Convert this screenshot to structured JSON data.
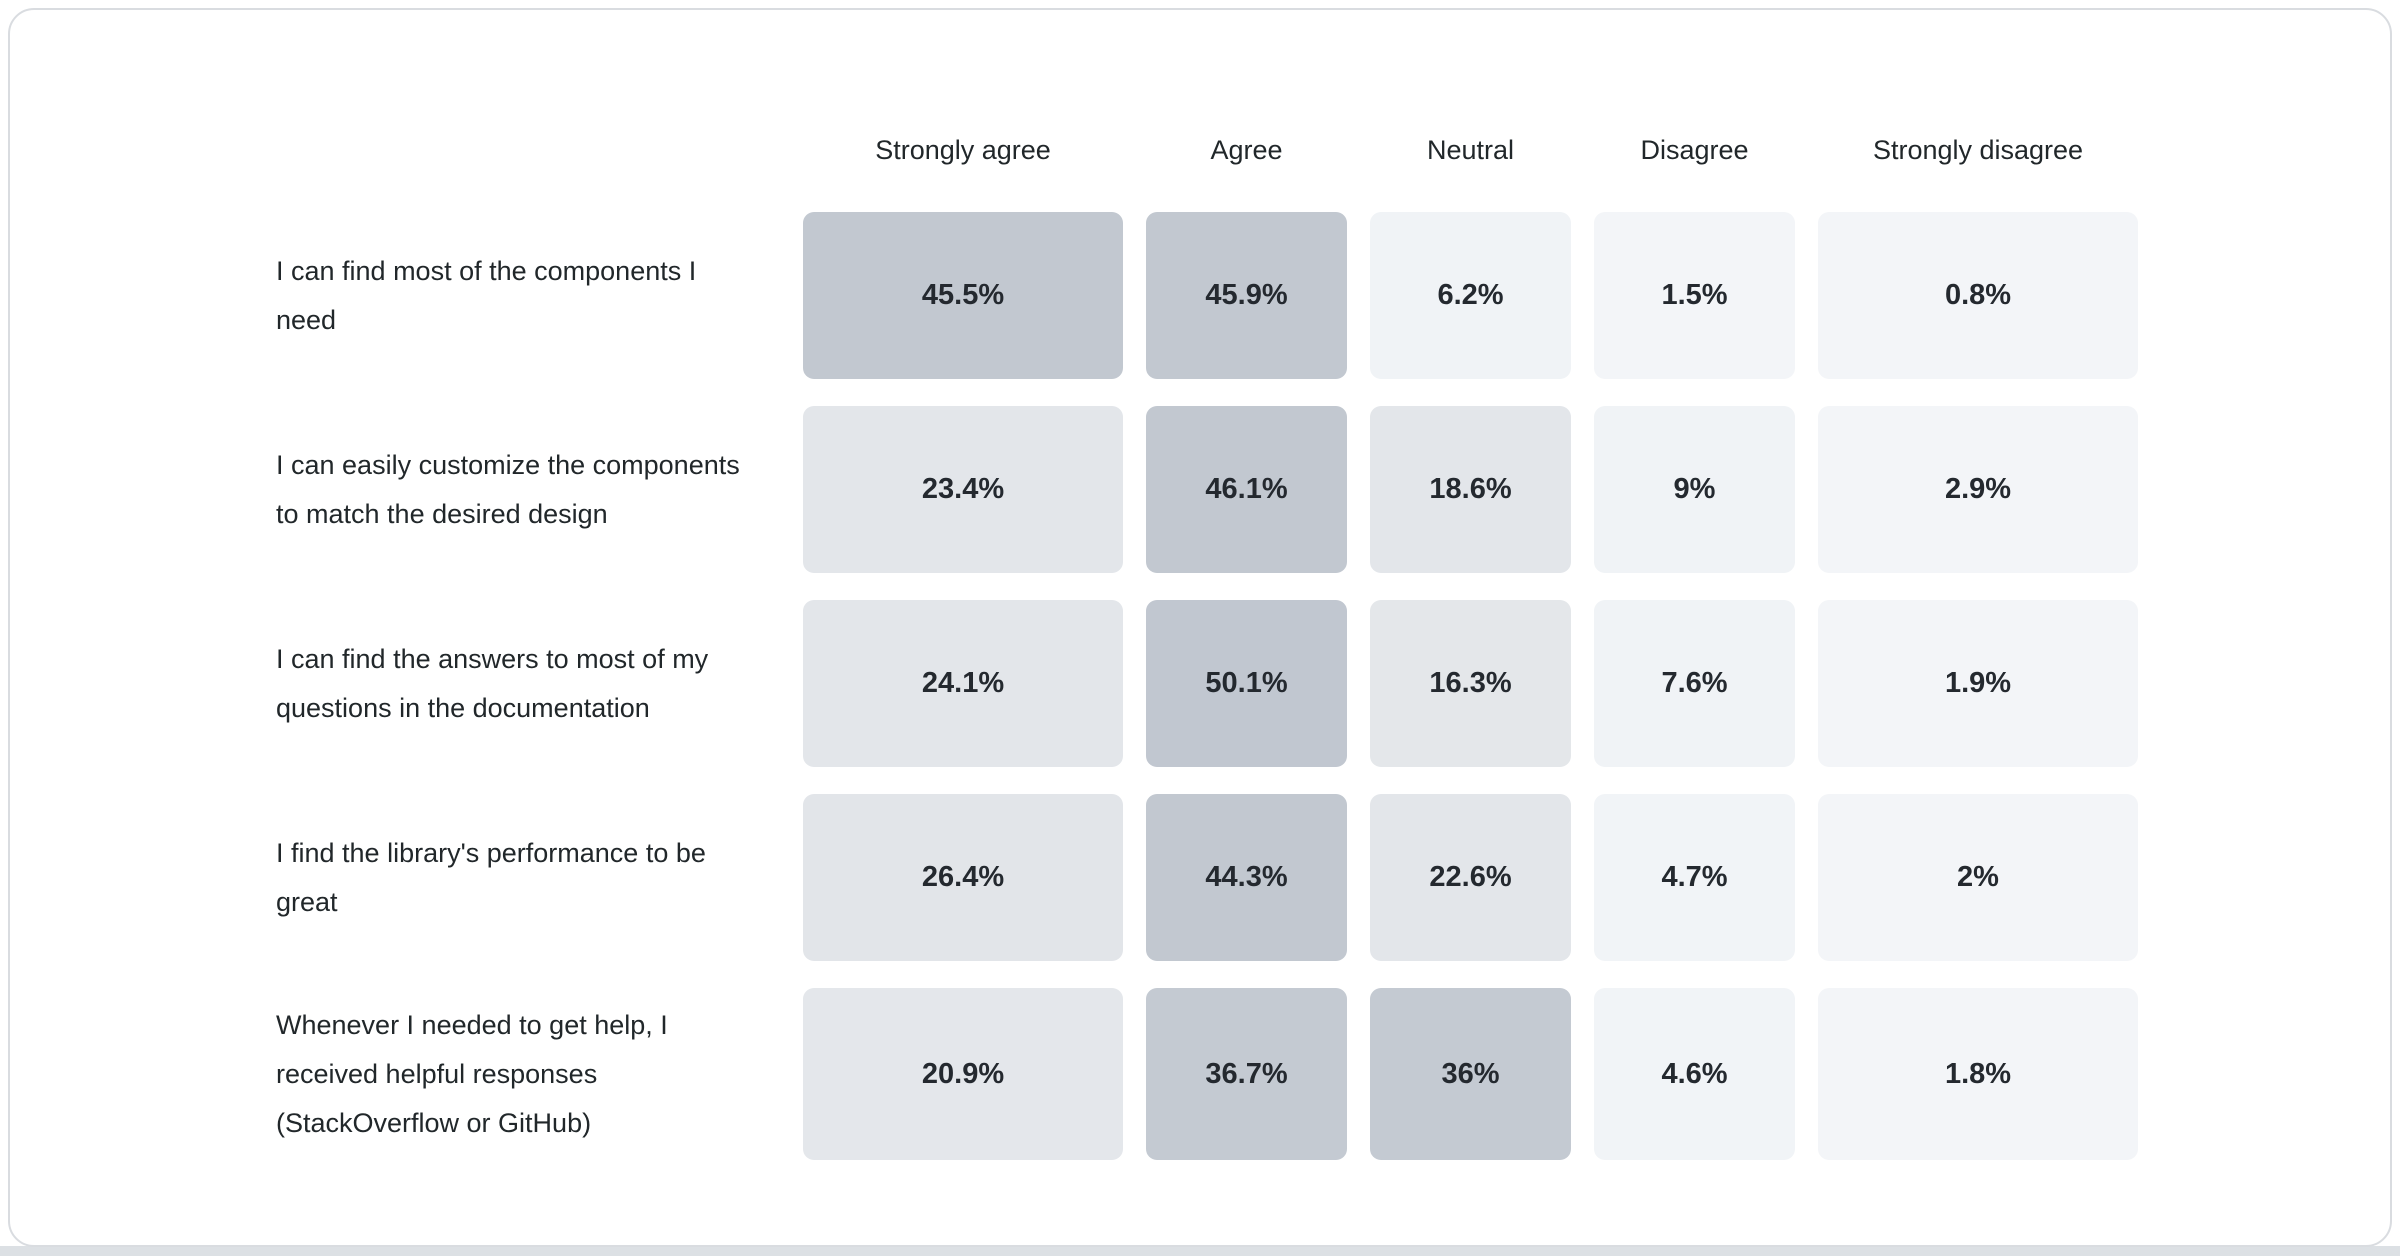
{
  "page": {
    "background_color": "#ffffff",
    "bottom_strip_color": "#dce0e4",
    "card_background": "#ffffff",
    "card_border_color": "#d9dce0"
  },
  "chart_data": {
    "type": "heatmap",
    "title": "",
    "columns": [
      "Strongly agree",
      "Agree",
      "Neutral",
      "Disagree",
      "Strongly disagree"
    ],
    "rows": [
      {
        "label": "I can find most of the components I need",
        "values": [
          45.5,
          45.9,
          6.2,
          1.5,
          0.8
        ],
        "labels": [
          "45.5%",
          "45.9%",
          "6.2%",
          "1.5%",
          "0.8%"
        ],
        "colors": [
          "#c2c8d0",
          "#c2c8d0",
          "#f0f3f6",
          "#f3f5f8",
          "#f3f5f8"
        ]
      },
      {
        "label": "I can easily customize the components to match the desired design",
        "values": [
          23.4,
          46.1,
          18.6,
          9,
          2.9
        ],
        "labels": [
          "23.4%",
          "46.1%",
          "18.6%",
          "9%",
          "2.9%"
        ],
        "colors": [
          "#e3e6ea",
          "#c2c8d0",
          "#e3e6ea",
          "#f0f3f6",
          "#f3f5f8"
        ]
      },
      {
        "label": "I can find the answers to most of my questions in the documentation",
        "values": [
          24.1,
          50.1,
          16.3,
          7.6,
          1.9
        ],
        "labels": [
          "24.1%",
          "50.1%",
          "16.3%",
          "7.6%",
          "1.9%"
        ],
        "colors": [
          "#e3e6ea",
          "#c1c7d0",
          "#e4e7ea",
          "#f0f3f6",
          "#f3f5f8"
        ]
      },
      {
        "label": "I find the library's performance to be great",
        "values": [
          26.4,
          44.3,
          22.6,
          4.7,
          2
        ],
        "labels": [
          "26.4%",
          "44.3%",
          "22.6%",
          "4.7%",
          "2%"
        ],
        "colors": [
          "#e2e5e9",
          "#c2c8d0",
          "#e3e6ea",
          "#f1f4f7",
          "#f3f5f8"
        ]
      },
      {
        "label": "Whenever I needed to get help, I received helpful responses (StackOverflow or GitHub)",
        "values": [
          20.9,
          36.7,
          36,
          4.6,
          1.8
        ],
        "labels": [
          "20.9%",
          "36.7%",
          "36%",
          "4.6%",
          "1.8%"
        ],
        "colors": [
          "#e4e7eb",
          "#c4cad2",
          "#c4cad2",
          "#f1f4f7",
          "#f3f5f8"
        ]
      }
    ],
    "value_min": 0,
    "value_max": 50.1,
    "color_scale_low": "#f3f5f8",
    "color_scale_high": "#c1c7d0",
    "grid": false,
    "legend_position": "none"
  }
}
